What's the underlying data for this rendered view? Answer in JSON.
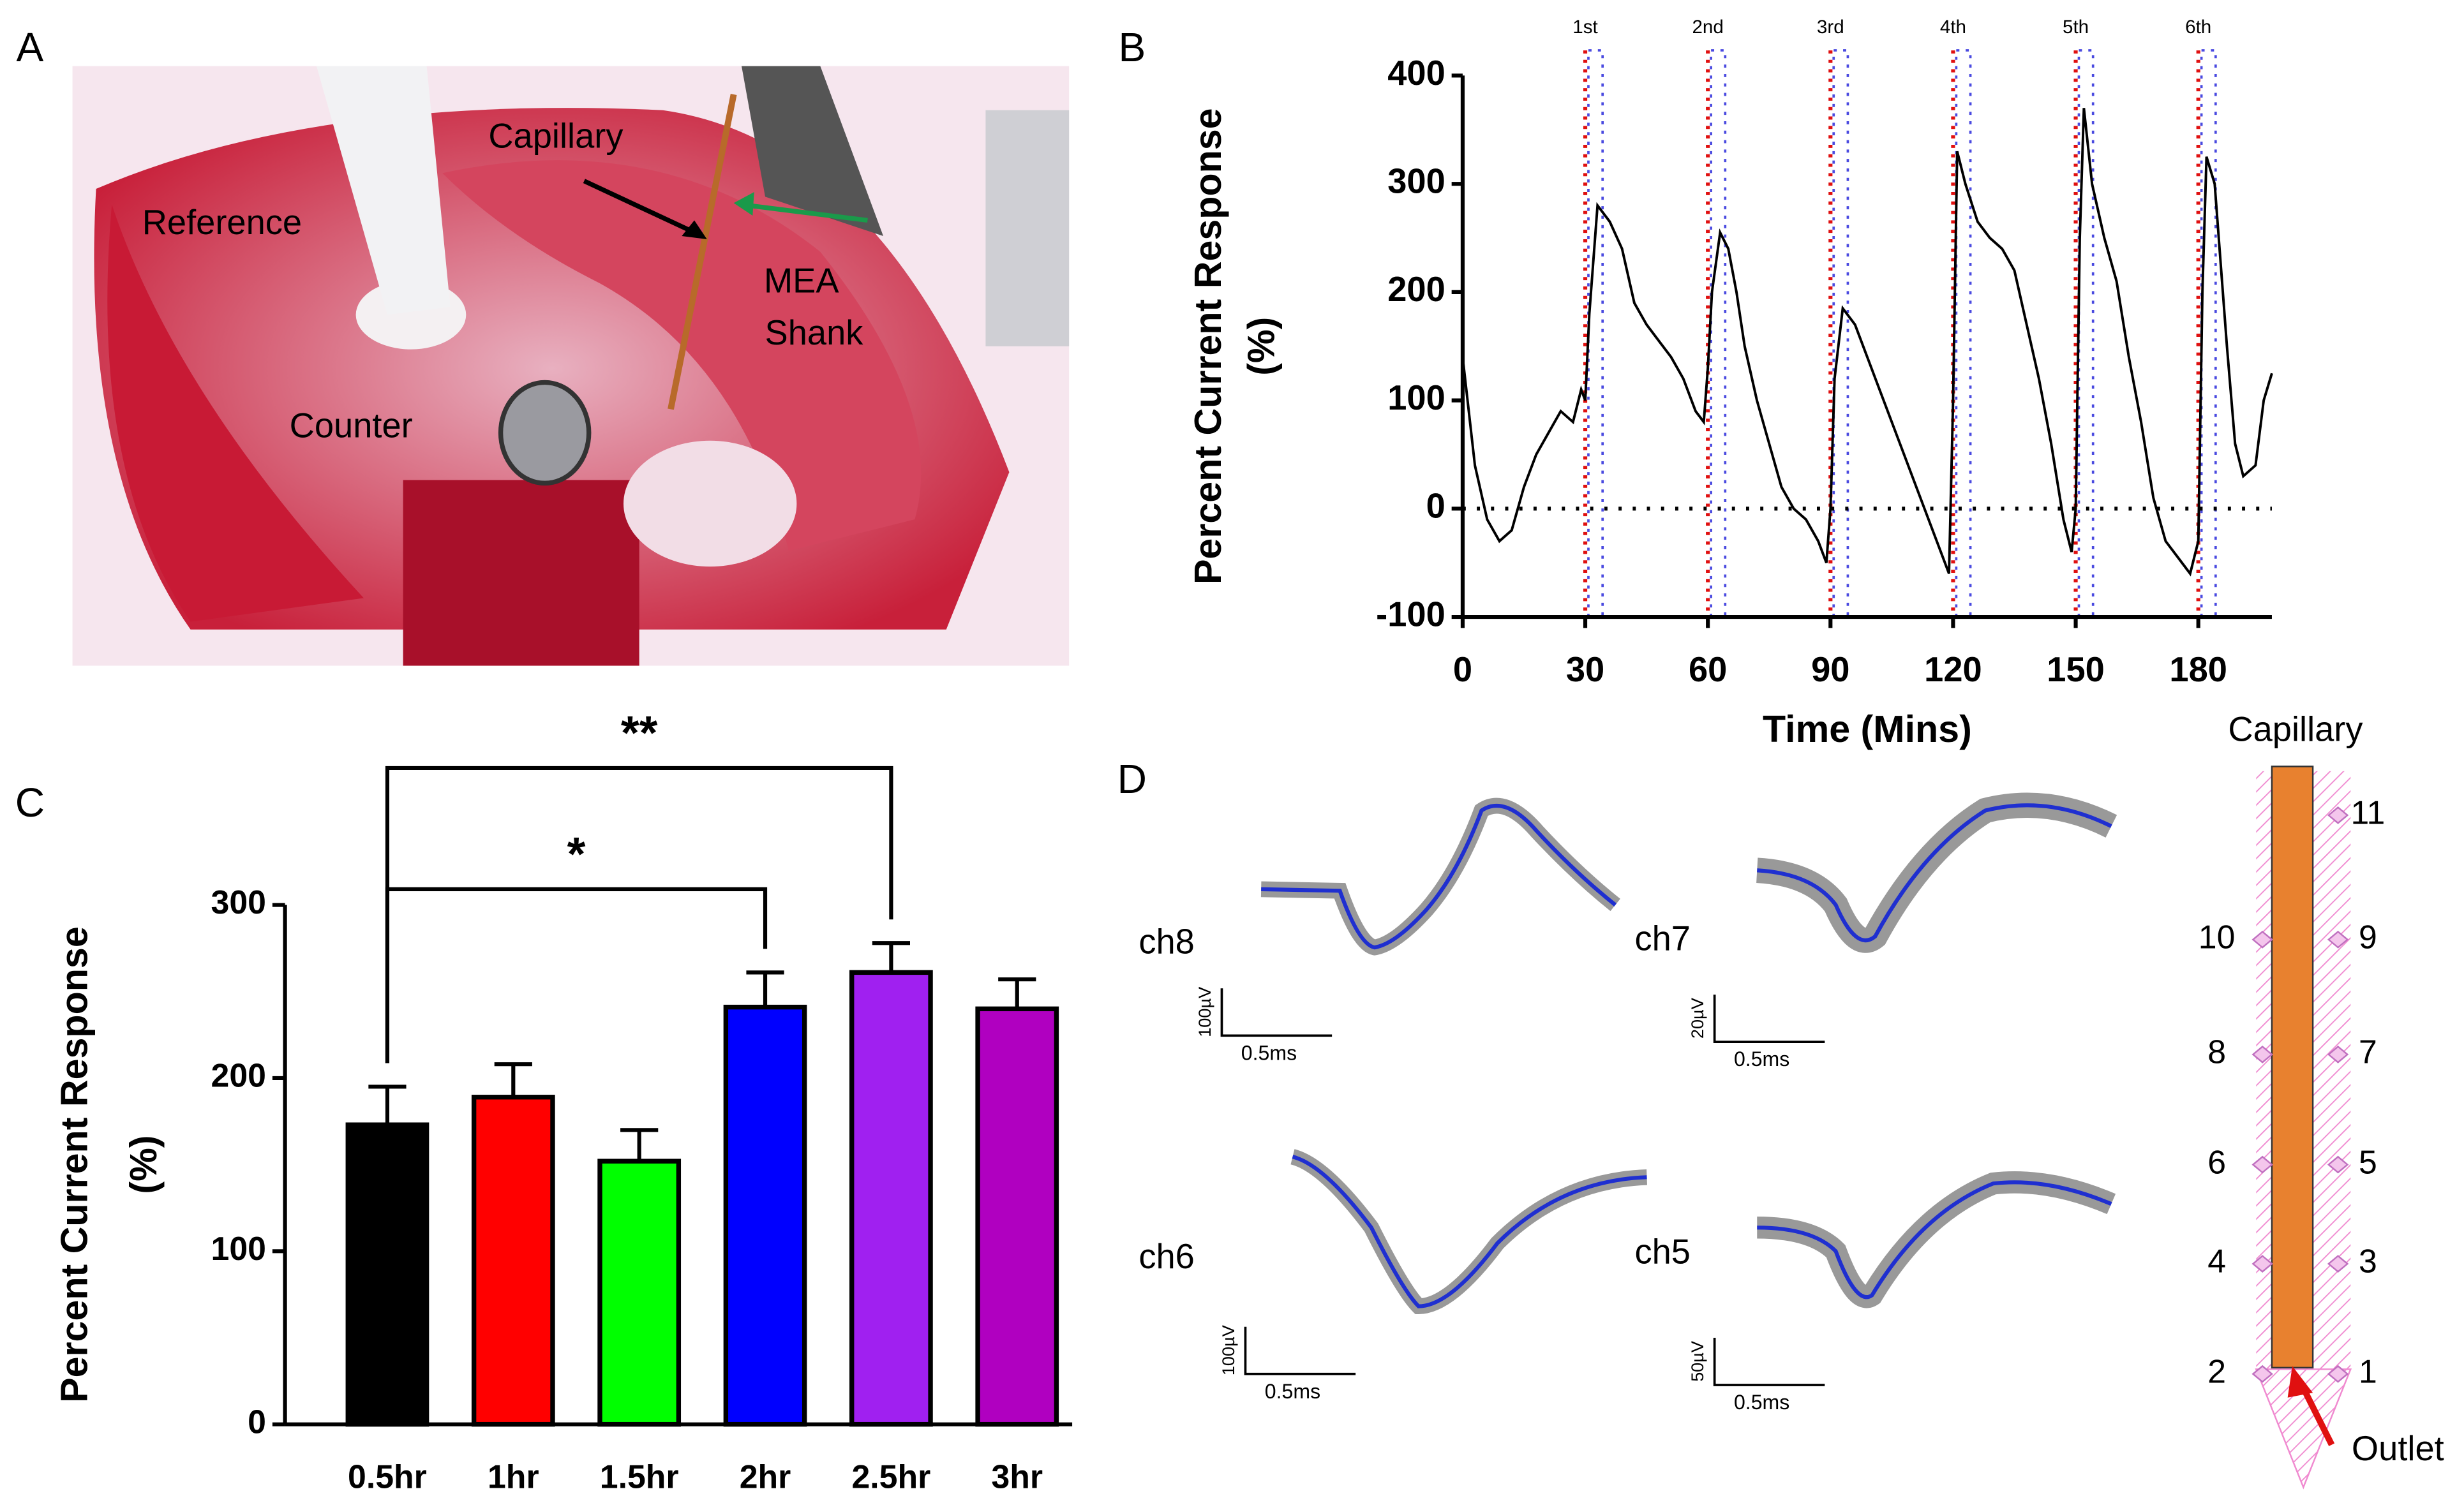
{
  "panels": [
    "A",
    "B",
    "C",
    "D"
  ],
  "photo": {
    "reference": "Reference",
    "capillary": "Capillary",
    "mea_shank": [
      "MEA",
      "Shank"
    ],
    "counter": "Counter"
  },
  "chart_data": [
    {
      "type": "line",
      "ylabel": [
        "Percent Current Response",
        "(%)"
      ],
      "xlabel": "Time (Mins)",
      "xlim": [
        0,
        198
      ],
      "xticks": [
        0,
        30,
        60,
        90,
        120,
        150,
        180
      ],
      "ylim": [
        -100,
        400
      ],
      "yticks": [
        -100,
        0,
        100,
        200,
        300,
        400
      ],
      "color": "#000000",
      "reference_line": 0,
      "annotations": [
        {
          "x": 30,
          "label": "1st"
        },
        {
          "x": 60,
          "label": "2nd"
        },
        {
          "x": 90,
          "label": "3rd"
        },
        {
          "x": 120,
          "label": "4th"
        },
        {
          "x": 150,
          "label": "5th"
        },
        {
          "x": 180,
          "label": "6th"
        }
      ],
      "x": [
        0,
        3,
        6,
        9,
        12,
        15,
        18,
        21,
        24,
        27,
        29,
        30,
        31,
        33,
        36,
        39,
        42,
        45,
        48,
        51,
        54,
        57,
        59,
        60,
        61,
        63,
        65,
        67,
        69,
        72,
        75,
        78,
        81,
        84,
        87,
        89,
        90,
        91,
        93,
        96,
        99,
        102,
        105,
        108,
        111,
        114,
        117,
        119,
        120,
        121,
        123,
        126,
        129,
        132,
        135,
        138,
        141,
        144,
        147,
        149,
        150,
        151,
        152,
        154,
        157,
        160,
        163,
        166,
        169,
        172,
        175,
        178,
        180,
        181,
        182,
        184,
        187,
        189,
        191,
        194,
        196,
        198
      ],
      "values": [
        140,
        40,
        -10,
        -30,
        -20,
        20,
        50,
        70,
        90,
        80,
        110,
        100,
        180,
        280,
        265,
        240,
        190,
        170,
        155,
        140,
        120,
        90,
        80,
        130,
        200,
        255,
        240,
        200,
        150,
        100,
        60,
        20,
        0,
        -10,
        -30,
        -50,
        0,
        120,
        185,
        170,
        140,
        110,
        80,
        50,
        20,
        -10,
        -40,
        -60,
        100,
        330,
        300,
        265,
        250,
        240,
        220,
        170,
        120,
        60,
        -10,
        -40,
        0,
        250,
        370,
        300,
        250,
        210,
        140,
        80,
        10,
        -30,
        -45,
        -60,
        -30,
        200,
        325,
        300,
        150,
        60,
        30,
        40,
        100,
        125
      ]
    },
    {
      "type": "bar",
      "ylabel": [
        "Percent Current Response",
        "(%)"
      ],
      "categories": [
        "0.5hr",
        "1hr",
        "1.5hr",
        "2hr",
        "2.5hr",
        "3hr"
      ],
      "values": [
        173,
        189,
        152,
        241,
        261,
        240
      ],
      "errors": [
        22,
        19,
        18,
        20,
        17,
        17
      ],
      "colors": [
        "#000000",
        "#ff0000",
        "#00ff00",
        "#0000ff",
        "#a020f0",
        "#b000c0"
      ],
      "ylim": [
        0,
        300
      ],
      "yticks": [
        0,
        100,
        200,
        300
      ],
      "comparisons": [
        {
          "from": 0,
          "to": 3,
          "label": "*"
        },
        {
          "from": 0,
          "to": 4,
          "label": "**"
        }
      ]
    }
  ],
  "waveforms": [
    {
      "label": "ch8",
      "amplitude": "100µV",
      "time": "0.5ms"
    },
    {
      "label": "ch7",
      "amplitude": "20µV",
      "time": "0.5ms"
    },
    {
      "label": "ch6",
      "amplitude": "100µV",
      "time": "0.5ms"
    },
    {
      "label": "ch5",
      "amplitude": "50µV",
      "time": "0.5ms"
    }
  ],
  "probe": {
    "title": "Capillary",
    "outlet": "Outlet",
    "left": [
      "10",
      "8",
      "6",
      "4",
      "2"
    ],
    "right": [
      "11",
      "9",
      "7",
      "5",
      "3",
      "1"
    ]
  }
}
